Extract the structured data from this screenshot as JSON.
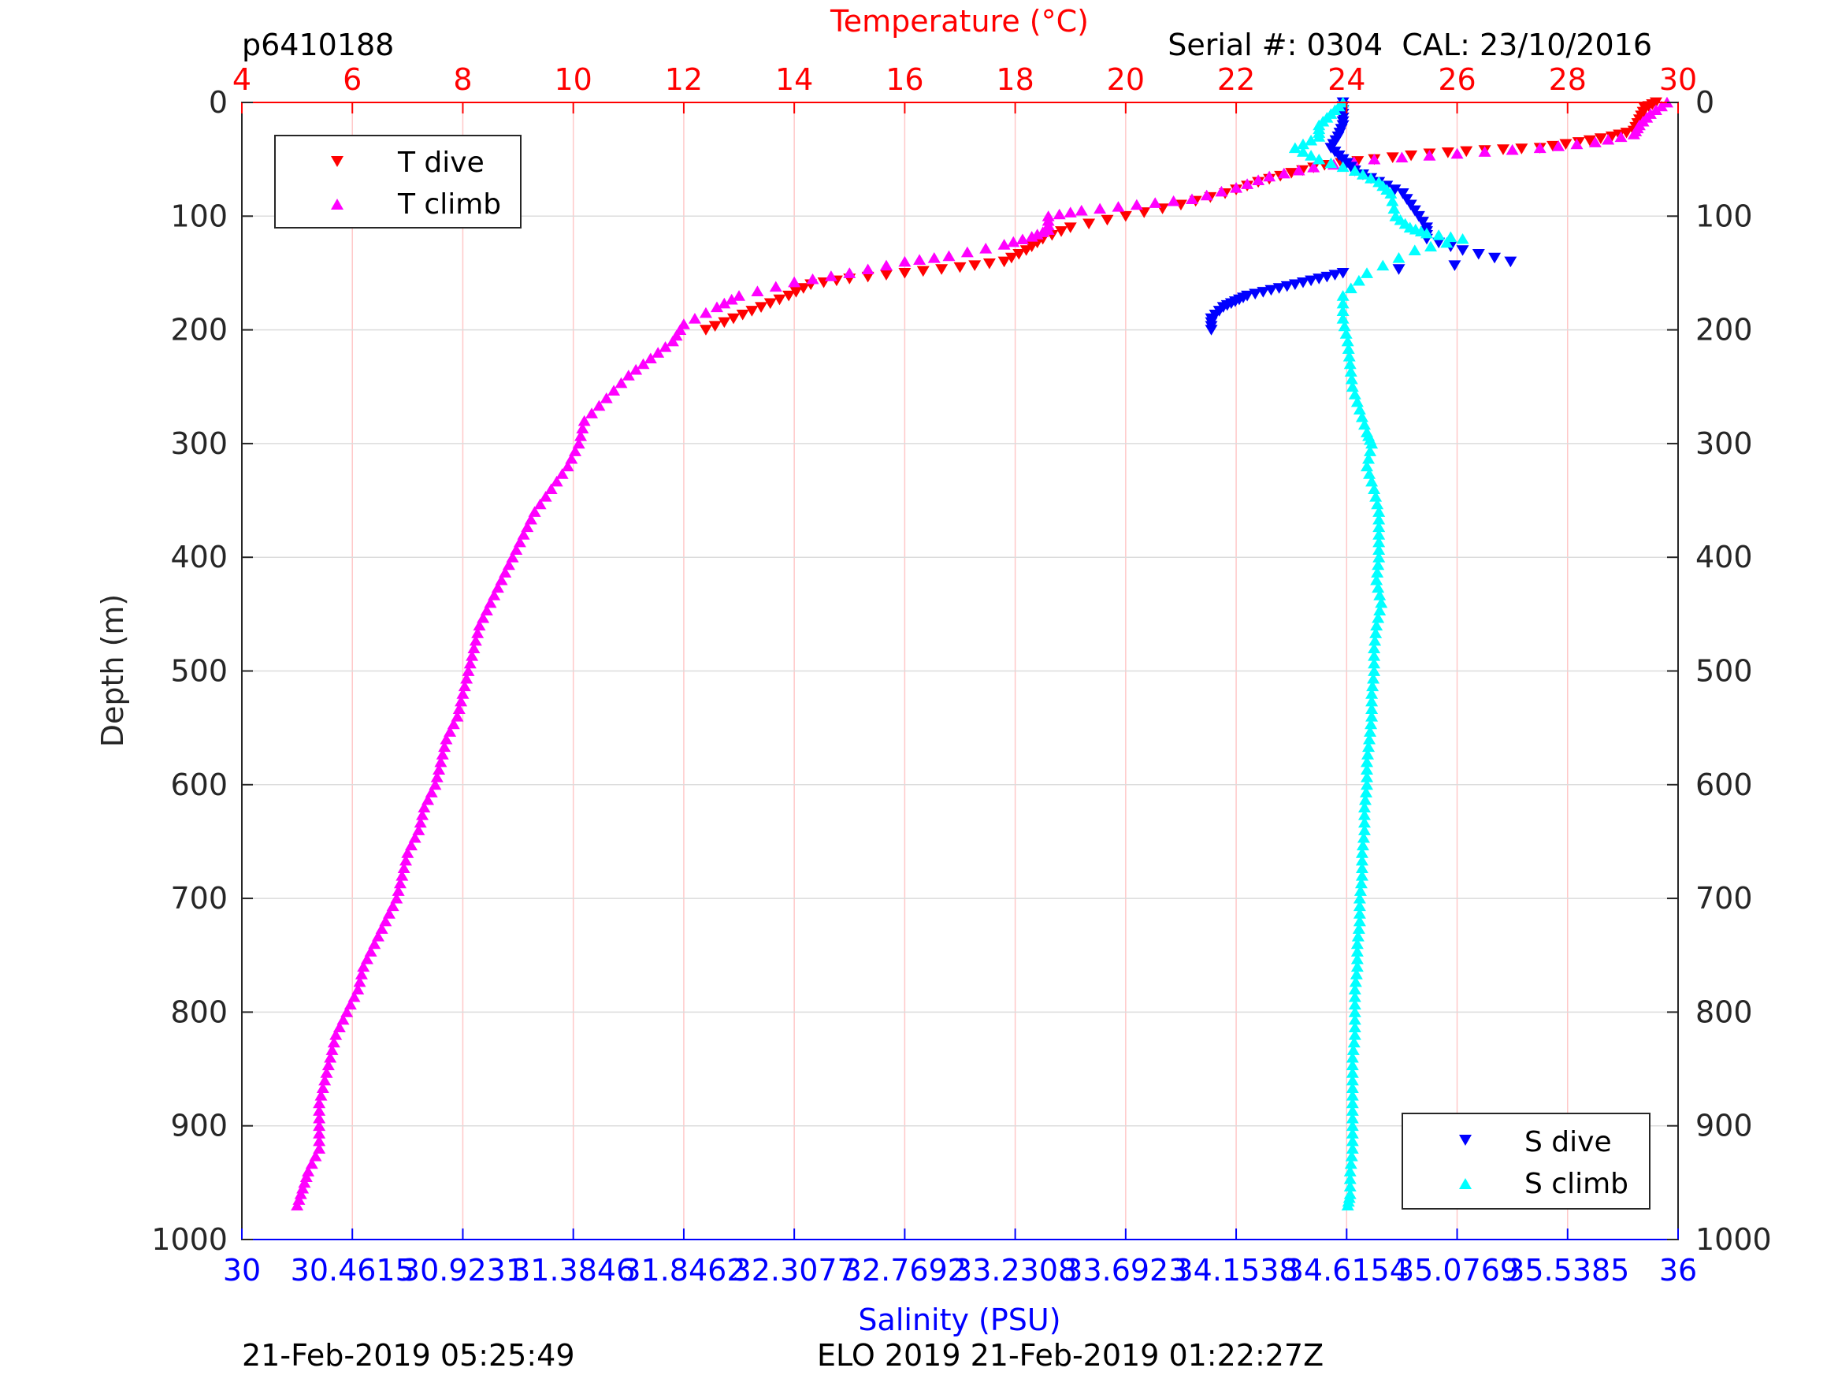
{
  "header": {
    "profile_id": "p6410188",
    "serial_cal": "Serial #: 0304  CAL: 23/10/2016"
  },
  "footer": {
    "left_timestamp": "21-Feb-2019 05:25:49",
    "right_text": "ELO 2019 21-Feb-2019 01:22:27Z"
  },
  "colors": {
    "temperature_axis": "#ff0000",
    "salinity_axis": "#0000ff",
    "t_dive": "#ff0000",
    "t_climb": "#ff00ff",
    "s_dive": "#0000ff",
    "s_climb": "#00ffff",
    "grid_vertical": "#ffc8c8",
    "grid_horizontal": "#dcdcdc"
  },
  "chart_data": {
    "type": "scatter",
    "title": "",
    "grid": true,
    "y_axis": {
      "label": "Depth (m)",
      "range": [
        0,
        1000
      ],
      "reversed": true,
      "ticks": [
        "0",
        "100",
        "200",
        "300",
        "400",
        "500",
        "600",
        "700",
        "800",
        "900",
        "1000"
      ]
    },
    "top_axis": {
      "label": "Temperature (°C)",
      "range": [
        4,
        30
      ],
      "ticks": [
        "4",
        "6",
        "8",
        "10",
        "12",
        "14",
        "16",
        "18",
        "20",
        "22",
        "24",
        "26",
        "28",
        "30"
      ]
    },
    "bottom_axis": {
      "label": "Salinity (PSU)",
      "range": [
        30,
        36
      ],
      "ticks": [
        "30",
        "30.4615",
        "30.9231",
        "31.3846",
        "31.8462",
        "32.3077",
        "32.7692",
        "33.2308",
        "33.6923",
        "34.1538",
        "34.6154",
        "35.0769",
        "35.5385",
        "36"
      ]
    },
    "legends": [
      {
        "position": "top-left",
        "entries": [
          "T dive",
          "T climb"
        ]
      },
      {
        "position": "bottom-right",
        "entries": [
          "S dive",
          "S climb"
        ]
      }
    ],
    "series": [
      {
        "name": "T dive",
        "axis": "temperature",
        "marker": "triangle-down",
        "points": [
          [
            29.6,
            0
          ],
          [
            29.4,
            5
          ],
          [
            29.3,
            15
          ],
          [
            29.2,
            25
          ],
          [
            28.8,
            30
          ],
          [
            28.2,
            35
          ],
          [
            27.5,
            40
          ],
          [
            26.5,
            42
          ],
          [
            25.5,
            45
          ],
          [
            24.5,
            50
          ],
          [
            23.6,
            55
          ],
          [
            23.0,
            62
          ],
          [
            22.4,
            70
          ],
          [
            21.8,
            80
          ],
          [
            21.0,
            90
          ],
          [
            20.0,
            100
          ],
          [
            19.0,
            110
          ],
          [
            18.5,
            120
          ],
          [
            18.2,
            130
          ],
          [
            17.8,
            140
          ],
          [
            17.0,
            145
          ],
          [
            16.0,
            150
          ],
          [
            15.0,
            155
          ],
          [
            14.3,
            160
          ],
          [
            13.9,
            170
          ],
          [
            13.4,
            180
          ],
          [
            12.9,
            190
          ],
          [
            12.4,
            200
          ]
        ]
      },
      {
        "name": "T climb",
        "axis": "temperature",
        "marker": "triangle-up",
        "points": [
          [
            29.8,
            0
          ],
          [
            29.5,
            10
          ],
          [
            29.3,
            20
          ],
          [
            29.2,
            28
          ],
          [
            28.5,
            35
          ],
          [
            27.5,
            40
          ],
          [
            26.0,
            45
          ],
          [
            24.5,
            50
          ],
          [
            23.4,
            57
          ],
          [
            22.6,
            65
          ],
          [
            22.0,
            75
          ],
          [
            21.2,
            85
          ],
          [
            20.2,
            90
          ],
          [
            19.2,
            95
          ],
          [
            18.6,
            100
          ],
          [
            18.6,
            112
          ],
          [
            18.3,
            118
          ],
          [
            17.8,
            125
          ],
          [
            16.8,
            135
          ],
          [
            16.0,
            140
          ],
          [
            15.0,
            150
          ],
          [
            14.0,
            158
          ],
          [
            13.0,
            170
          ],
          [
            12.6,
            180
          ],
          [
            12.0,
            195
          ],
          [
            11.8,
            210
          ],
          [
            11.4,
            225
          ],
          [
            11.0,
            240
          ],
          [
            10.6,
            260
          ],
          [
            10.2,
            280
          ],
          [
            10.1,
            300
          ],
          [
            9.9,
            320
          ],
          [
            9.6,
            340
          ],
          [
            9.3,
            360
          ],
          [
            9.1,
            380
          ],
          [
            8.9,
            400
          ],
          [
            8.7,
            420
          ],
          [
            8.5,
            440
          ],
          [
            8.3,
            460
          ],
          [
            8.2,
            480
          ],
          [
            8.1,
            500
          ],
          [
            8.0,
            520
          ],
          [
            7.9,
            540
          ],
          [
            7.7,
            560
          ],
          [
            7.6,
            580
          ],
          [
            7.5,
            600
          ],
          [
            7.3,
            620
          ],
          [
            7.2,
            640
          ],
          [
            7.0,
            660
          ],
          [
            6.9,
            680
          ],
          [
            6.8,
            700
          ],
          [
            6.6,
            720
          ],
          [
            6.4,
            740
          ],
          [
            6.2,
            760
          ],
          [
            6.1,
            780
          ],
          [
            5.9,
            800
          ],
          [
            5.7,
            820
          ],
          [
            5.6,
            840
          ],
          [
            5.5,
            860
          ],
          [
            5.4,
            880
          ],
          [
            5.4,
            900
          ],
          [
            5.4,
            920
          ],
          [
            5.2,
            940
          ],
          [
            5.1,
            955
          ],
          [
            5.0,
            970
          ]
        ]
      },
      {
        "name": "S dive",
        "axis": "salinity",
        "marker": "triangle-down",
        "points": [
          [
            34.6,
            0
          ],
          [
            34.6,
            10
          ],
          [
            34.6,
            20
          ],
          [
            34.58,
            30
          ],
          [
            34.55,
            40
          ],
          [
            34.6,
            50
          ],
          [
            34.65,
            60
          ],
          [
            34.75,
            70
          ],
          [
            34.85,
            80
          ],
          [
            34.9,
            95
          ],
          [
            34.95,
            110
          ],
          [
            34.95,
            120
          ],
          [
            35.1,
            130
          ],
          [
            35.3,
            140
          ],
          [
            34.6,
            150
          ],
          [
            34.5,
            155
          ],
          [
            34.4,
            160
          ],
          [
            34.3,
            165
          ],
          [
            34.2,
            170
          ],
          [
            34.15,
            175
          ],
          [
            34.1,
            180
          ],
          [
            34.05,
            190
          ],
          [
            34.05,
            200
          ]
        ]
      },
      {
        "name": "S climb",
        "axis": "salinity",
        "marker": "triangle-up",
        "points": [
          [
            34.6,
            0
          ],
          [
            34.55,
            10
          ],
          [
            34.5,
            20
          ],
          [
            34.5,
            30
          ],
          [
            34.4,
            40
          ],
          [
            34.5,
            50
          ],
          [
            34.65,
            60
          ],
          [
            34.75,
            70
          ],
          [
            34.8,
            80
          ],
          [
            34.82,
            100
          ],
          [
            34.88,
            110
          ],
          [
            34.95,
            115
          ],
          [
            35.1,
            120
          ],
          [
            34.9,
            130
          ],
          [
            34.7,
            150
          ],
          [
            34.6,
            170
          ],
          [
            34.6,
            190
          ],
          [
            34.62,
            210
          ],
          [
            34.63,
            230
          ],
          [
            34.64,
            250
          ],
          [
            34.67,
            270
          ],
          [
            34.7,
            290
          ],
          [
            34.72,
            300
          ],
          [
            34.7,
            320
          ],
          [
            34.73,
            340
          ],
          [
            34.75,
            360
          ],
          [
            34.75,
            380
          ],
          [
            34.75,
            400
          ],
          [
            34.74,
            420
          ],
          [
            34.76,
            440
          ],
          [
            34.74,
            460
          ],
          [
            34.73,
            480
          ],
          [
            34.73,
            500
          ],
          [
            34.72,
            520
          ],
          [
            34.72,
            540
          ],
          [
            34.71,
            560
          ],
          [
            34.7,
            580
          ],
          [
            34.7,
            600
          ],
          [
            34.69,
            620
          ],
          [
            34.69,
            640
          ],
          [
            34.68,
            660
          ],
          [
            34.68,
            680
          ],
          [
            34.67,
            700
          ],
          [
            34.67,
            720
          ],
          [
            34.66,
            740
          ],
          [
            34.66,
            760
          ],
          [
            34.65,
            780
          ],
          [
            34.65,
            800
          ],
          [
            34.65,
            820
          ],
          [
            34.64,
            840
          ],
          [
            34.64,
            860
          ],
          [
            34.64,
            880
          ],
          [
            34.64,
            900
          ],
          [
            34.64,
            920
          ],
          [
            34.63,
            940
          ],
          [
            34.63,
            960
          ],
          [
            34.62,
            970
          ]
        ]
      }
    ]
  }
}
